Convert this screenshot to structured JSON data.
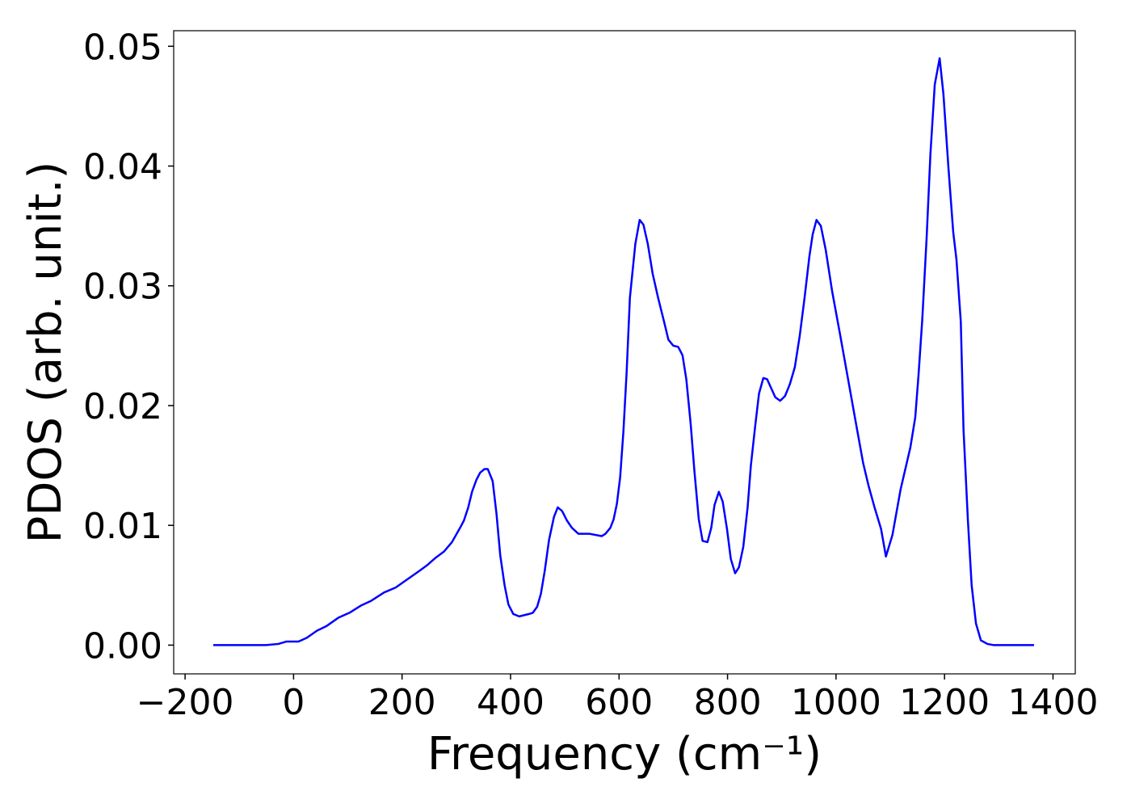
{
  "chart_data": {
    "type": "line",
    "xlabel": "Frequency (cm⁻¹)",
    "ylabel": "PDOS (arb. unit.)",
    "x": [
      -148,
      -51,
      -28,
      -13,
      9,
      24,
      43,
      61,
      83,
      103,
      124,
      143,
      167,
      188,
      210,
      232,
      247,
      262,
      277,
      292,
      307,
      314,
      322,
      329,
      337,
      344,
      352,
      358,
      367,
      374,
      381,
      389,
      396,
      405,
      416,
      434,
      441,
      449,
      456,
      463,
      471,
      480,
      487,
      495,
      504,
      513,
      525,
      545,
      568,
      575,
      584,
      590,
      596,
      602,
      608,
      614,
      620,
      630,
      638,
      645,
      653,
      662,
      672,
      683,
      691,
      700,
      709,
      717,
      724,
      732,
      739,
      747,
      754,
      763,
      770,
      776,
      784,
      791,
      799,
      806,
      814,
      821,
      829,
      837,
      843,
      851,
      858,
      866,
      873,
      881,
      888,
      897,
      906,
      915,
      924,
      933,
      942,
      951,
      957,
      964,
      972,
      981,
      993,
      1008,
      1023,
      1038,
      1050,
      1060,
      1071,
      1083,
      1092,
      1104,
      1119,
      1137,
      1146,
      1152,
      1159,
      1167,
      1174,
      1182,
      1191,
      1198,
      1207,
      1216,
      1222,
      1230,
      1235,
      1243,
      1250,
      1258,
      1267,
      1279,
      1291,
      1365
    ],
    "series": [
      {
        "color": "#0000ff",
        "values": [
          0,
          0,
          0.0001,
          0.0003,
          0.0003,
          0.0006,
          0.0012,
          0.0016,
          0.0023,
          0.0027,
          0.0033,
          0.0037,
          0.0044,
          0.0048,
          0.0055,
          0.0062,
          0.0067,
          0.0073,
          0.0078,
          0.0086,
          0.0098,
          0.0104,
          0.0115,
          0.0128,
          0.0138,
          0.0144,
          0.0147,
          0.0147,
          0.0137,
          0.011,
          0.0075,
          0.005,
          0.0034,
          0.0026,
          0.0024,
          0.0026,
          0.0027,
          0.0032,
          0.0043,
          0.0062,
          0.0088,
          0.0107,
          0.0115,
          0.0112,
          0.0104,
          0.0098,
          0.0093,
          0.0093,
          0.0091,
          0.0093,
          0.0098,
          0.0105,
          0.0118,
          0.014,
          0.0178,
          0.0228,
          0.029,
          0.0335,
          0.0355,
          0.0351,
          0.0335,
          0.031,
          0.029,
          0.027,
          0.0255,
          0.025,
          0.0249,
          0.0242,
          0.0222,
          0.0185,
          0.0145,
          0.0105,
          0.0087,
          0.0086,
          0.0098,
          0.0117,
          0.0128,
          0.012,
          0.0097,
          0.0072,
          0.006,
          0.0065,
          0.0082,
          0.0115,
          0.015,
          0.0183,
          0.021,
          0.0223,
          0.0222,
          0.0214,
          0.0207,
          0.0204,
          0.0208,
          0.0218,
          0.0232,
          0.0258,
          0.029,
          0.0325,
          0.0343,
          0.0355,
          0.035,
          0.033,
          0.0295,
          0.0258,
          0.022,
          0.0182,
          0.0152,
          0.0133,
          0.0115,
          0.0097,
          0.0074,
          0.0092,
          0.013,
          0.0165,
          0.019,
          0.0225,
          0.0272,
          0.034,
          0.041,
          0.0468,
          0.049,
          0.046,
          0.04,
          0.0345,
          0.0322,
          0.027,
          0.018,
          0.0105,
          0.005,
          0.0018,
          0.0004,
          0.0001,
          0,
          0
        ]
      }
    ],
    "xlim": [
      -221,
      1441
    ],
    "ylim": [
      -0.0024,
      0.0513
    ],
    "xticks": [
      {
        "value": -200,
        "label": "−200"
      },
      0,
      200,
      400,
      600,
      800,
      1000,
      1200,
      1400
    ],
    "yticks": [
      {
        "value": 0,
        "label": "0.00"
      },
      0.01,
      0.02,
      0.03,
      0.04,
      0.05
    ],
    "grid": false
  }
}
